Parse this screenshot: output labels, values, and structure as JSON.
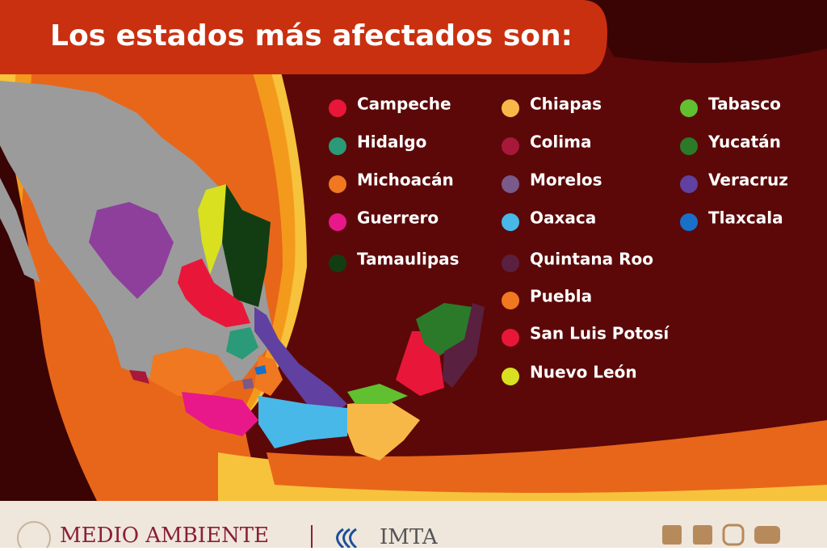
{
  "title": "Los estados más afectados son:",
  "legend": {
    "columns": [
      [
        {
          "label": "Campeche",
          "color": "#e8173a"
        },
        {
          "label": "Hidalgo",
          "color": "#2a9a78"
        },
        {
          "label": "Michoacán",
          "color": "#f07820"
        },
        {
          "label": "Guerrero",
          "color": "#e8188a"
        },
        {
          "label": "Tamaulipas",
          "color": "#123d12"
        }
      ],
      [
        {
          "label": "Chiapas",
          "color": "#f8b848"
        },
        {
          "label": "Colima",
          "color": "#a8183a"
        },
        {
          "label": "Morelos",
          "color": "#7a5a8a"
        },
        {
          "label": "Oaxaca",
          "color": "#48b8e8"
        },
        {
          "label": "Quintana Roo",
          "color": "#5a2040"
        },
        {
          "label": "Puebla",
          "color": "#f07820"
        },
        {
          "label": "San Luis Potosí",
          "color": "#e8173a"
        },
        {
          "label": "Nuevo León",
          "color": "#d8e020"
        }
      ],
      [
        {
          "label": "Tabasco",
          "color": "#60c030"
        },
        {
          "label": "Yucatán",
          "color": "#2a7a2a"
        },
        {
          "label": "Veracruz",
          "color": "#6040a0"
        },
        {
          "label": "Tlaxcala",
          "color": "#1870c8"
        }
      ]
    ]
  },
  "footer": {
    "ministry": "MEDIO AMBIENTE",
    "institute": "IMTA"
  }
}
